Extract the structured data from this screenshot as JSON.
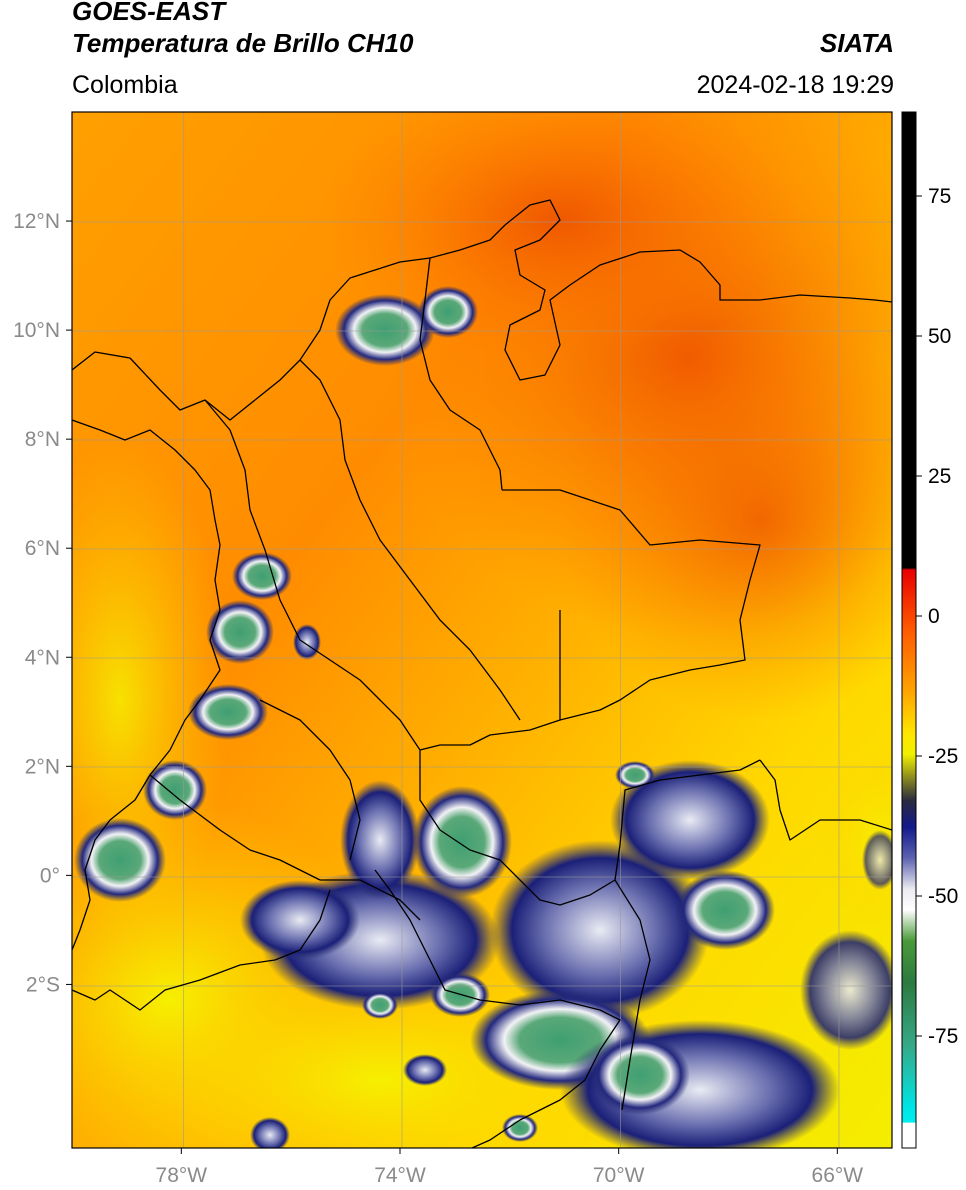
{
  "header": {
    "line1": "GOES-EAST",
    "line2": "Temperatura de Brillo CH10",
    "brand": "SIATA",
    "region": "Colombia",
    "datetime": "2024-02-18 19:29"
  },
  "map": {
    "lon_range": [
      -80.0,
      -65.0
    ],
    "lat_range": [
      -5.0,
      14.0
    ],
    "lat_ticks": [
      {
        "value": 12,
        "label": "12°N"
      },
      {
        "value": 10,
        "label": "10°N"
      },
      {
        "value": 8,
        "label": "8°N"
      },
      {
        "value": 6,
        "label": "6°N"
      },
      {
        "value": 4,
        "label": "4°N"
      },
      {
        "value": 2,
        "label": "2°N"
      },
      {
        "value": 0,
        "label": "0°"
      },
      {
        "value": -2,
        "label": "2°S"
      }
    ],
    "lon_ticks": [
      {
        "value": -78,
        "label": "78°W"
      },
      {
        "value": -74,
        "label": "74°W"
      },
      {
        "value": -70,
        "label": "70°W"
      },
      {
        "value": -66,
        "label": "66°W"
      }
    ],
    "gridlines": true,
    "colors": {
      "warm": "#f06a08",
      "mid": "#ff9a00",
      "cool": "#ffd400",
      "cold_yellow": "#f5f000",
      "cloud_blue": "#1a1f7a",
      "cloud_white": "#eef0f4",
      "cloud_green": "#3a9a6a",
      "coast": "#000000"
    }
  },
  "colorbar": {
    "range": [
      -95,
      90
    ],
    "ticks": [
      {
        "value": 75,
        "label": "75"
      },
      {
        "value": 50,
        "label": "50"
      },
      {
        "value": 25,
        "label": "25"
      },
      {
        "value": 0,
        "label": "0"
      },
      {
        "value": -25,
        "label": "-25"
      },
      {
        "value": -50,
        "label": "-50"
      },
      {
        "value": -75,
        "label": "-75"
      }
    ]
  }
}
